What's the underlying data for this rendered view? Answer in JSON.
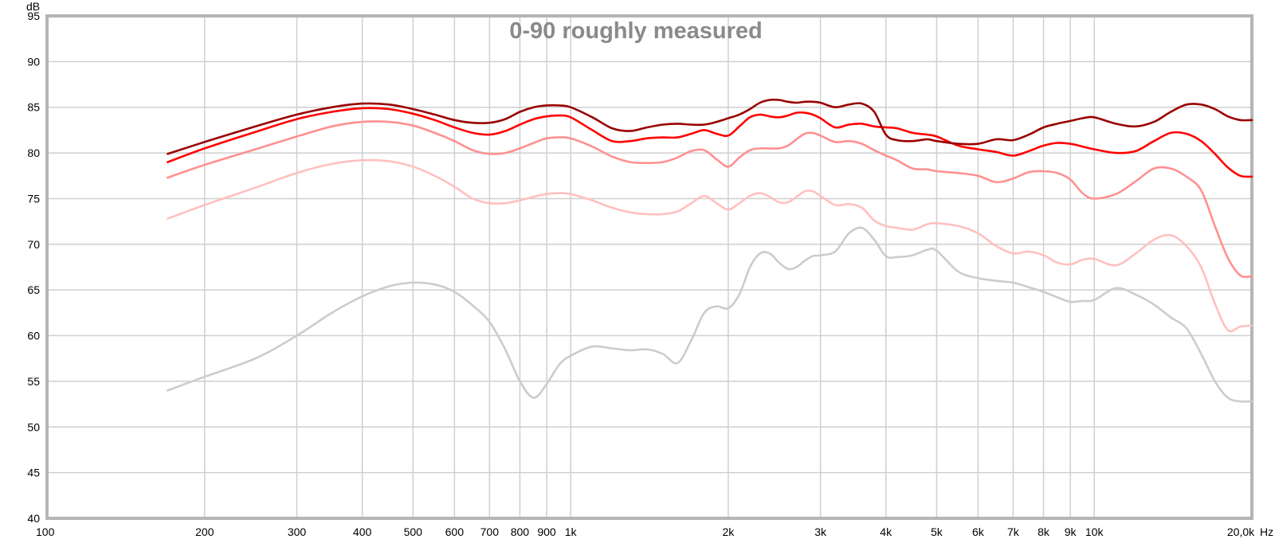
{
  "chart_data": {
    "type": "line",
    "title": "0-90 roughly measured",
    "ylabel": "dB",
    "xlabel": "Hz",
    "xscale": "log",
    "xlim": [
      100,
      20000
    ],
    "ylim": [
      40,
      95
    ],
    "grid": true,
    "y_ticks": [
      {
        "v": 40,
        "label": "40"
      },
      {
        "v": 45,
        "label": "45"
      },
      {
        "v": 50,
        "label": "50"
      },
      {
        "v": 55,
        "label": "55"
      },
      {
        "v": 60,
        "label": "60"
      },
      {
        "v": 65,
        "label": "65"
      },
      {
        "v": 70,
        "label": "70"
      },
      {
        "v": 75,
        "label": "75"
      },
      {
        "v": 80,
        "label": "80"
      },
      {
        "v": 85,
        "label": "85"
      },
      {
        "v": 90,
        "label": "90"
      },
      {
        "v": 95,
        "label": "95"
      }
    ],
    "x_ticks": [
      {
        "v": 100,
        "label": "100"
      },
      {
        "v": 200,
        "label": "200"
      },
      {
        "v": 300,
        "label": "300"
      },
      {
        "v": 400,
        "label": "400"
      },
      {
        "v": 500,
        "label": "500"
      },
      {
        "v": 600,
        "label": "600"
      },
      {
        "v": 700,
        "label": "700"
      },
      {
        "v": 800,
        "label": "800"
      },
      {
        "v": 900,
        "label": "900"
      },
      {
        "v": 1000,
        "label": "1k"
      },
      {
        "v": 2000,
        "label": "2k"
      },
      {
        "v": 3000,
        "label": "3k"
      },
      {
        "v": 4000,
        "label": "4k"
      },
      {
        "v": 5000,
        "label": "5k"
      },
      {
        "v": 6000,
        "label": "6k"
      },
      {
        "v": 7000,
        "label": "7k"
      },
      {
        "v": 8000,
        "label": "8k"
      },
      {
        "v": 9000,
        "label": "9k"
      },
      {
        "v": 10000,
        "label": "10k"
      },
      {
        "v": 20000,
        "label": "20,0k"
      }
    ],
    "series": [
      {
        "color": "#cccccc",
        "x": [
          170,
          200,
          250,
          300,
          350,
          400,
          450,
          500,
          550,
          600,
          650,
          700,
          750,
          800,
          850,
          900,
          950,
          1000,
          1100,
          1200,
          1300,
          1400,
          1500,
          1600,
          1700,
          1800,
          1900,
          2000,
          2100,
          2200,
          2300,
          2400,
          2500,
          2600,
          2700,
          2800,
          2900,
          3000,
          3200,
          3400,
          3600,
          3800,
          4000,
          4200,
          4500,
          4800,
          5000,
          5500,
          6000,
          6500,
          7000,
          7500,
          8000,
          8500,
          9000,
          9500,
          10000,
          11000,
          12000,
          13000,
          14000,
          15000,
          16000,
          17000,
          18000,
          19000,
          20000
        ],
        "y": [
          54.0,
          55.5,
          57.5,
          60.0,
          62.5,
          64.3,
          65.4,
          65.8,
          65.6,
          64.8,
          63.3,
          61.5,
          58.5,
          55.0,
          53.2,
          54.7,
          56.8,
          57.8,
          58.8,
          58.6,
          58.4,
          58.5,
          58.0,
          57.0,
          59.5,
          62.5,
          63.2,
          63.0,
          64.5,
          67.5,
          69.0,
          69.0,
          68.0,
          67.3,
          67.5,
          68.2,
          68.7,
          68.8,
          69.2,
          71.2,
          71.8,
          70.5,
          68.7,
          68.6,
          68.8,
          69.4,
          69.3,
          67.0,
          66.3,
          66.0,
          65.8,
          65.3,
          64.8,
          64.2,
          63.7,
          63.8,
          63.9,
          65.2,
          64.5,
          63.4,
          62.0,
          60.8,
          58.0,
          55.0,
          53.2,
          52.8,
          52.8
        ]
      },
      {
        "color": "#ffc0c0",
        "x": [
          170,
          200,
          250,
          300,
          350,
          400,
          450,
          500,
          550,
          600,
          650,
          700,
          750,
          800,
          850,
          900,
          950,
          1000,
          1100,
          1200,
          1300,
          1400,
          1500,
          1600,
          1700,
          1800,
          1900,
          2000,
          2100,
          2200,
          2300,
          2400,
          2500,
          2600,
          2700,
          2800,
          2900,
          3000,
          3200,
          3400,
          3600,
          3800,
          4000,
          4200,
          4500,
          4800,
          5000,
          5500,
          6000,
          6500,
          7000,
          7500,
          8000,
          8500,
          9000,
          9500,
          10000,
          11000,
          12000,
          13000,
          14000,
          15000,
          16000,
          17000,
          18000,
          19000,
          20000
        ],
        "y": [
          72.8,
          74.3,
          76.2,
          77.8,
          78.8,
          79.2,
          79.1,
          78.5,
          77.5,
          76.3,
          75.0,
          74.5,
          74.5,
          74.8,
          75.2,
          75.5,
          75.6,
          75.5,
          74.8,
          74.0,
          73.5,
          73.3,
          73.3,
          73.6,
          74.5,
          75.3,
          74.5,
          73.8,
          74.5,
          75.3,
          75.6,
          75.2,
          74.6,
          74.6,
          75.2,
          75.8,
          75.8,
          75.3,
          74.3,
          74.4,
          74.0,
          72.6,
          72.0,
          71.8,
          71.6,
          72.2,
          72.3,
          72.0,
          71.2,
          69.8,
          69.0,
          69.2,
          68.8,
          68.0,
          67.8,
          68.3,
          68.4,
          67.7,
          69.0,
          70.5,
          71.0,
          69.8,
          67.5,
          63.5,
          60.6,
          61.0,
          61.1
        ]
      },
      {
        "color": "#ff9090",
        "x": [
          170,
          200,
          250,
          300,
          350,
          400,
          450,
          500,
          550,
          600,
          650,
          700,
          750,
          800,
          850,
          900,
          950,
          1000,
          1100,
          1200,
          1300,
          1400,
          1500,
          1600,
          1700,
          1800,
          1900,
          2000,
          2100,
          2200,
          2300,
          2400,
          2500,
          2600,
          2700,
          2800,
          2900,
          3000,
          3200,
          3400,
          3600,
          3800,
          4000,
          4200,
          4500,
          4800,
          5000,
          5500,
          6000,
          6500,
          7000,
          7500,
          8000,
          8500,
          9000,
          9500,
          10000,
          11000,
          12000,
          13000,
          14000,
          15000,
          16000,
          17000,
          18000,
          19000,
          20000
        ],
        "y": [
          77.3,
          78.7,
          80.4,
          81.8,
          82.9,
          83.4,
          83.4,
          83.0,
          82.2,
          81.3,
          80.3,
          79.9,
          80.0,
          80.5,
          81.1,
          81.6,
          81.7,
          81.6,
          80.7,
          79.6,
          79.0,
          78.9,
          79.0,
          79.5,
          80.2,
          80.3,
          79.3,
          78.5,
          79.5,
          80.3,
          80.5,
          80.5,
          80.5,
          80.8,
          81.5,
          82.1,
          82.2,
          81.9,
          81.2,
          81.3,
          81.0,
          80.3,
          79.7,
          79.2,
          78.3,
          78.2,
          78.0,
          77.8,
          77.5,
          76.8,
          77.2,
          77.9,
          78.0,
          77.8,
          77.1,
          75.6,
          75.0,
          75.5,
          76.9,
          78.3,
          78.3,
          77.4,
          75.9,
          72.0,
          68.5,
          66.6,
          66.5
        ]
      },
      {
        "color": "#ff0000",
        "x": [
          170,
          200,
          250,
          300,
          350,
          400,
          450,
          500,
          550,
          600,
          650,
          700,
          750,
          800,
          850,
          900,
          950,
          1000,
          1100,
          1200,
          1300,
          1400,
          1500,
          1600,
          1700,
          1800,
          1900,
          2000,
          2100,
          2200,
          2300,
          2400,
          2500,
          2600,
          2700,
          2800,
          2900,
          3000,
          3200,
          3400,
          3600,
          3800,
          4000,
          4200,
          4500,
          4800,
          5000,
          5500,
          6000,
          6500,
          7000,
          7500,
          8000,
          8500,
          9000,
          9500,
          10000,
          11000,
          12000,
          13000,
          14000,
          15000,
          16000,
          17000,
          18000,
          19000,
          20000
        ],
        "y": [
          79.0,
          80.5,
          82.3,
          83.7,
          84.5,
          84.9,
          84.8,
          84.3,
          83.6,
          82.8,
          82.2,
          82.0,
          82.4,
          83.1,
          83.7,
          84.0,
          84.1,
          83.9,
          82.5,
          81.3,
          81.3,
          81.6,
          81.7,
          81.7,
          82.1,
          82.5,
          82.1,
          81.9,
          82.9,
          83.9,
          84.2,
          84.0,
          83.9,
          84.1,
          84.4,
          84.4,
          84.2,
          83.8,
          82.8,
          83.1,
          83.2,
          82.9,
          82.8,
          82.7,
          82.2,
          82.0,
          81.8,
          80.8,
          80.4,
          80.1,
          79.7,
          80.2,
          80.8,
          81.1,
          81.0,
          80.7,
          80.4,
          80.0,
          80.2,
          81.3,
          82.2,
          82.1,
          81.3,
          79.9,
          78.4,
          77.5,
          77.4
        ]
      },
      {
        "color": "#990000",
        "x": [
          170,
          200,
          250,
          300,
          350,
          400,
          450,
          500,
          550,
          600,
          650,
          700,
          750,
          800,
          850,
          900,
          950,
          1000,
          1100,
          1200,
          1300,
          1400,
          1500,
          1600,
          1700,
          1800,
          1900,
          2000,
          2100,
          2200,
          2300,
          2400,
          2500,
          2600,
          2700,
          2800,
          2900,
          3000,
          3200,
          3400,
          3600,
          3800,
          4000,
          4200,
          4500,
          4800,
          5000,
          5500,
          6000,
          6500,
          7000,
          7500,
          8000,
          8500,
          9000,
          9500,
          10000,
          11000,
          12000,
          13000,
          14000,
          15000,
          16000,
          17000,
          18000,
          19000,
          20000
        ],
        "y": [
          79.9,
          81.2,
          82.9,
          84.2,
          85.0,
          85.4,
          85.3,
          84.8,
          84.2,
          83.6,
          83.3,
          83.3,
          83.7,
          84.5,
          85.0,
          85.2,
          85.2,
          85.0,
          83.9,
          82.7,
          82.4,
          82.8,
          83.1,
          83.2,
          83.1,
          83.1,
          83.4,
          83.8,
          84.2,
          84.8,
          85.5,
          85.8,
          85.8,
          85.6,
          85.5,
          85.6,
          85.6,
          85.5,
          85.0,
          85.3,
          85.4,
          84.5,
          82.0,
          81.4,
          81.3,
          81.5,
          81.3,
          81.0,
          81.0,
          81.5,
          81.4,
          82.0,
          82.8,
          83.2,
          83.5,
          83.8,
          83.9,
          83.2,
          82.9,
          83.4,
          84.5,
          85.3,
          85.3,
          84.8,
          84.0,
          83.6,
          83.6
        ]
      }
    ]
  }
}
